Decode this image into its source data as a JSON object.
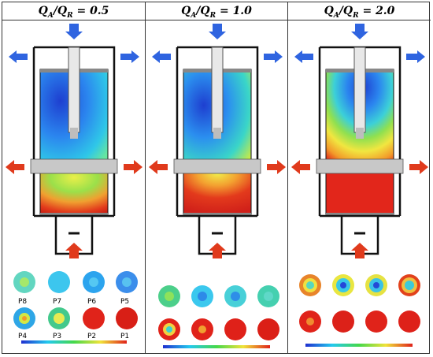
{
  "panels": [
    {
      "ratio": "0.5",
      "labels": [
        "P8",
        "P7",
        "P6",
        "P5",
        "P4",
        "P3",
        "P2",
        "P1"
      ]
    },
    {
      "ratio": "1.0",
      "labels": []
    },
    {
      "ratio": "2.0",
      "labels": []
    }
  ],
  "header": {
    "q_a": "Q",
    "sub_a": "A",
    "slash": "/",
    "q_r": "Q",
    "sub_r": "R",
    "eq": " = "
  },
  "colors": {
    "blue": "#1f4fd8",
    "red": "#d9261c",
    "green": "#3bd23b",
    "yellow": "#f2e532",
    "gray": "#c8c8c8"
  }
}
